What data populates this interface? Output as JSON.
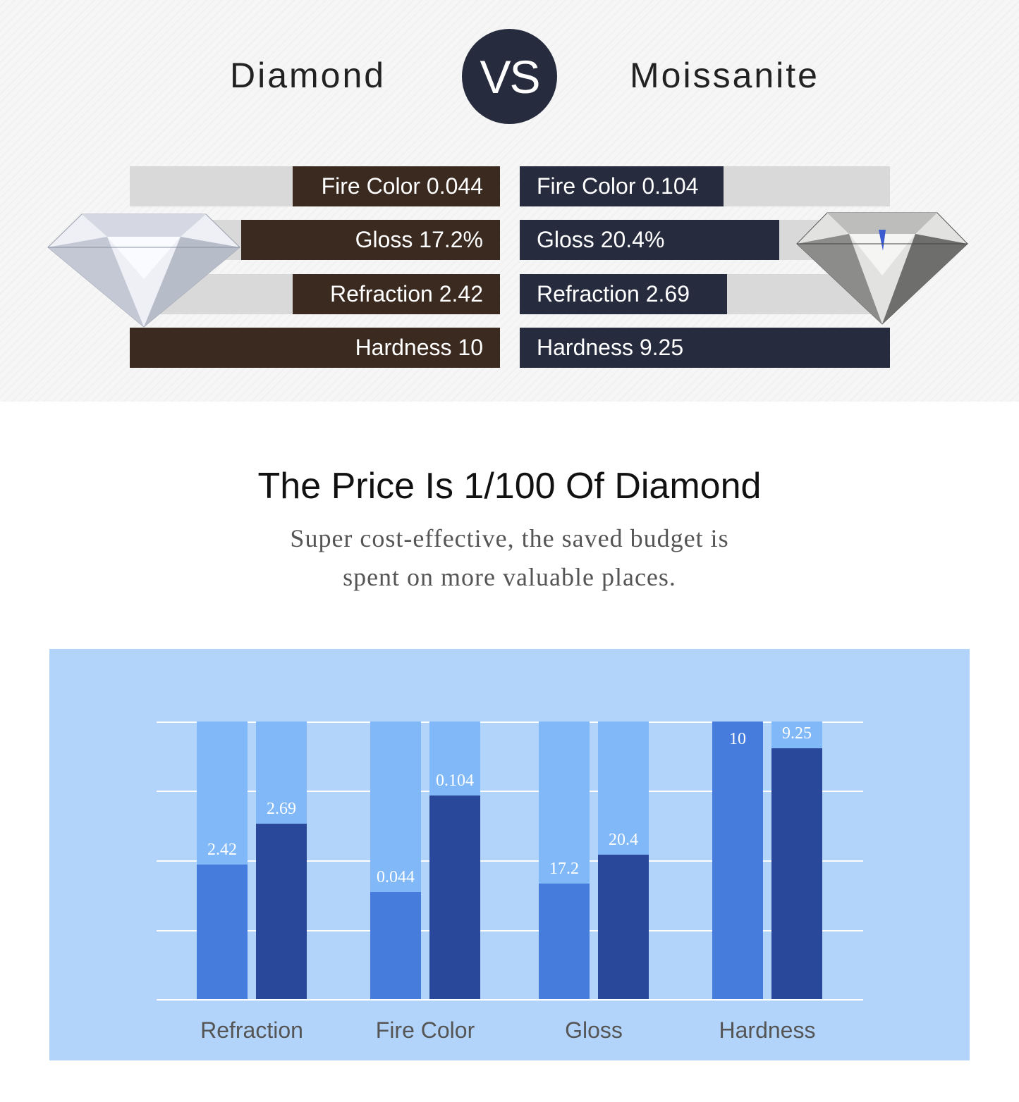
{
  "header": {
    "left": "Diamond",
    "vs": "VS",
    "right": "Moissanite"
  },
  "comparison": {
    "diamond": [
      {
        "label": "Fire Color 0.044",
        "fill": 0.56
      },
      {
        "label": "Gloss 17.2%",
        "fill": 0.7
      },
      {
        "label": "Refraction 2.42",
        "fill": 0.56
      },
      {
        "label": "Hardness 10",
        "fill": 1.0
      }
    ],
    "moissanite": [
      {
        "label": "Fire Color 0.104",
        "fill": 0.55
      },
      {
        "label": "Gloss 20.4%",
        "fill": 0.7
      },
      {
        "label": "Refraction 2.69",
        "fill": 0.56
      },
      {
        "label": "Hardness 9.25",
        "fill": 1.0
      }
    ],
    "colors": {
      "diamond": "#3a2a20",
      "moissanite": "#262b3d",
      "track": "#d9d9d9"
    }
  },
  "price": {
    "title": "The Price Is 1/100 Of Diamond",
    "subtitle_line1": "Super cost-effective, the saved budget is",
    "subtitle_line2": "spent on more valuable places."
  },
  "chart_data": {
    "type": "bar",
    "categories": [
      "Refraction",
      "Fire Color",
      "Gloss",
      "Hardness"
    ],
    "series": [
      {
        "values": [
          2.42,
          0.044,
          17.2,
          10
        ],
        "labels": [
          "2.42",
          "0.044",
          "17.2",
          "10"
        ],
        "fill": [
          0.485,
          0.386,
          0.416,
          1.0
        ],
        "color": "#467cdc"
      },
      {
        "values": [
          2.69,
          0.104,
          20.4,
          9.25
        ],
        "labels": [
          "2.69",
          "0.104",
          "20.4",
          "9.25"
        ],
        "fill": [
          0.632,
          0.733,
          0.52,
          0.904
        ],
        "color": "#2a4899"
      }
    ],
    "column_background": "#80b8f8",
    "panel_background": "#b3d4fa",
    "grid": true
  }
}
